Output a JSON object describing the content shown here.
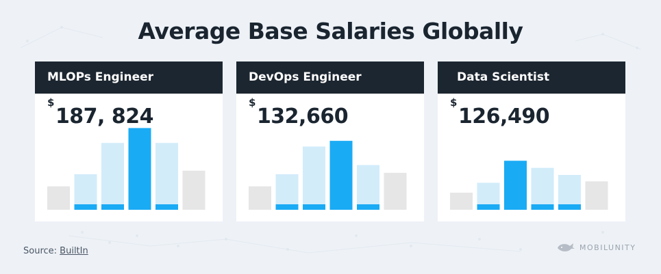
{
  "title": "Average Base Salaries Globally",
  "source": {
    "label": "Source:",
    "link": "BuiltIn"
  },
  "brand": {
    "name": "MOBILUNITY",
    "icon": "whale-icon"
  },
  "colors": {
    "highlight": "#1aabf5",
    "light": "#d2ecfa",
    "gray": "#e6e6e6",
    "base": "#1aabf5",
    "header_bg": "#1c2630"
  },
  "chart_data": [
    {
      "type": "bar",
      "title": "MLOPs Engineer",
      "value_label": "187, 824",
      "currency": "$",
      "values": [
        0.33,
        0.5,
        0.94,
        1.15,
        0.94,
        0.55
      ],
      "styles": [
        "gray",
        "light",
        "light",
        "highlight",
        "light",
        "gray"
      ]
    },
    {
      "type": "bar",
      "title": "DevOps Engineer",
      "value_label": "132,660",
      "currency": "$",
      "values": [
        0.33,
        0.5,
        0.89,
        0.97,
        0.63,
        0.52
      ],
      "styles": [
        "gray",
        "light",
        "light",
        "highlight",
        "light",
        "gray"
      ]
    },
    {
      "type": "bar",
      "title": "Data Scientist",
      "value_label": "126,490",
      "currency": "$",
      "values": [
        0.24,
        0.38,
        0.69,
        0.59,
        0.49,
        0.4
      ],
      "styles": [
        "gray",
        "light",
        "highlight",
        "light",
        "light",
        "gray"
      ]
    }
  ]
}
